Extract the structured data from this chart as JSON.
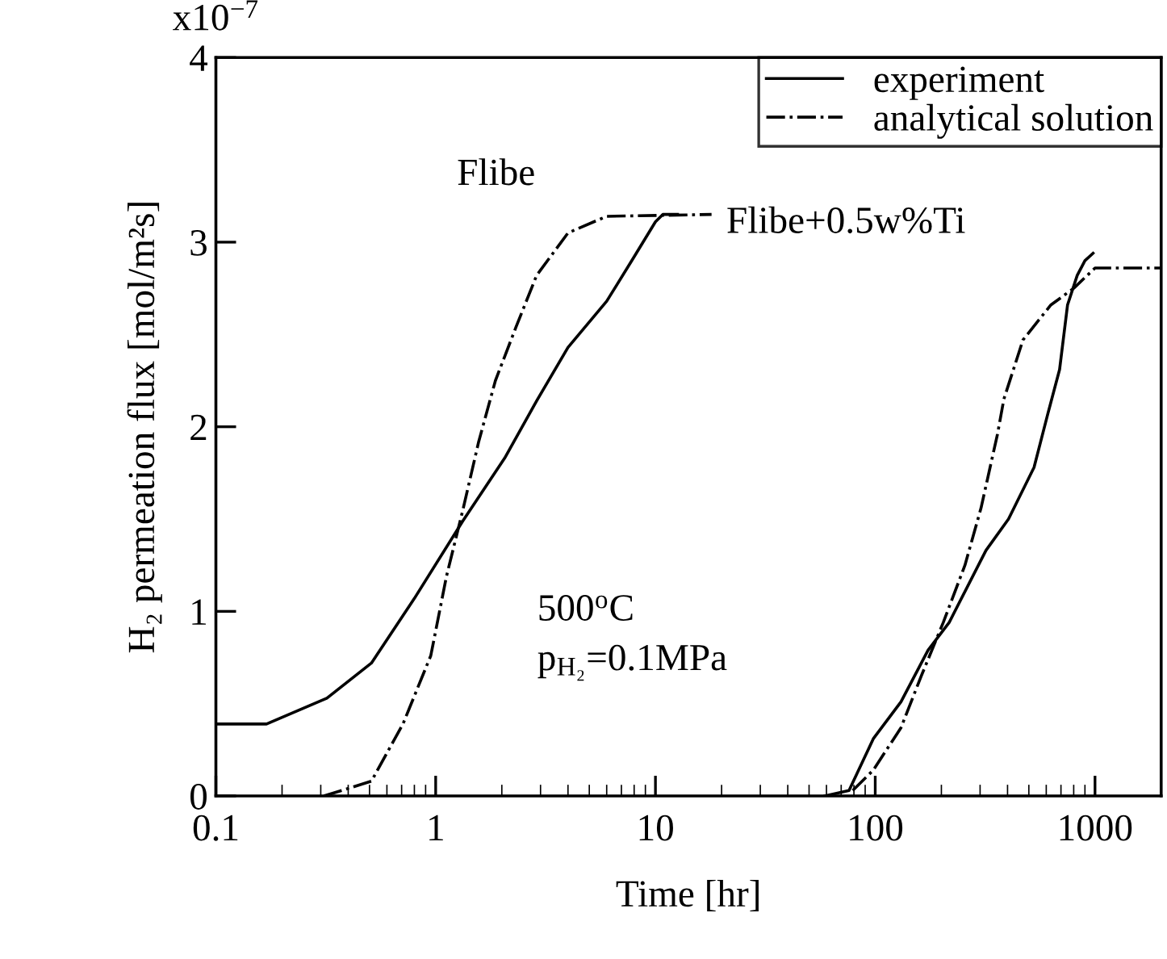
{
  "chart_data": {
    "type": "line",
    "xlabel": "Time [hr]",
    "ylabel": "H₂ permeation flux [mol/m²s]",
    "log": "x",
    "xlim": [
      0.1,
      2000
    ],
    "xticks": [
      0.1,
      1,
      10,
      100,
      1000
    ],
    "ylim": [
      0,
      4
    ],
    "yticks": [
      0,
      1,
      2,
      3,
      4
    ],
    "grid": false,
    "legend": "top right",
    "marker": "none",
    "series": [
      {
        "name": "experiment",
        "color": "#000000",
        "line_style": "solid",
        "x": [
          0.1,
          0.17,
          0.32,
          0.51,
          0.8,
          1.33,
          2.06,
          2.88,
          4.0,
          6.0,
          7.9,
          10,
          10.8,
          12.6
        ],
        "values": [
          0.39,
          0.39,
          0.53,
          0.72,
          1.07,
          1.49,
          1.83,
          2.14,
          2.43,
          2.68,
          2.91,
          3.11,
          3.15,
          3.15
        ]
      },
      {
        "name": "analytical solution",
        "color": "#000000",
        "line_style": "dashdot",
        "x": [
          0.31,
          0.51,
          0.71,
          0.95,
          1.12,
          1.33,
          1.57,
          1.87,
          2.32,
          2.88,
          4.0,
          6.0,
          18
        ],
        "values": [
          0,
          0.08,
          0.39,
          0.76,
          1.19,
          1.55,
          1.92,
          2.25,
          2.54,
          2.82,
          3.05,
          3.14,
          3.15
        ]
      },
      {
        "color": "#000000",
        "line_style": "solid",
        "x": [
          59,
          76,
          98,
          131,
          174,
          217,
          319,
          404,
          528,
          610,
          690,
          750,
          830,
          900,
          980
        ],
        "values": [
          0,
          0.03,
          0.31,
          0.51,
          0.79,
          0.94,
          1.33,
          1.5,
          1.78,
          2.07,
          2.31,
          2.66,
          2.82,
          2.9,
          2.94
        ]
      },
      {
        "color": "#000000",
        "line_style": "dashdot",
        "x": [
          79,
          98,
          131,
          162,
          204,
          256,
          303,
          360,
          385,
          470,
          630,
          800,
          1000,
          2000
        ],
        "values": [
          0.03,
          0.14,
          0.37,
          0.65,
          0.94,
          1.25,
          1.56,
          1.96,
          2.15,
          2.47,
          2.66,
          2.75,
          2.86,
          2.86
        ]
      }
    ],
    "annotations": [
      "x10$^{−7}$",
      "Flibe",
      "Flibe+0.5w%Ti",
      "500$^{o}$C",
      "p$_{H₂}$=0.1MPa"
    ]
  }
}
